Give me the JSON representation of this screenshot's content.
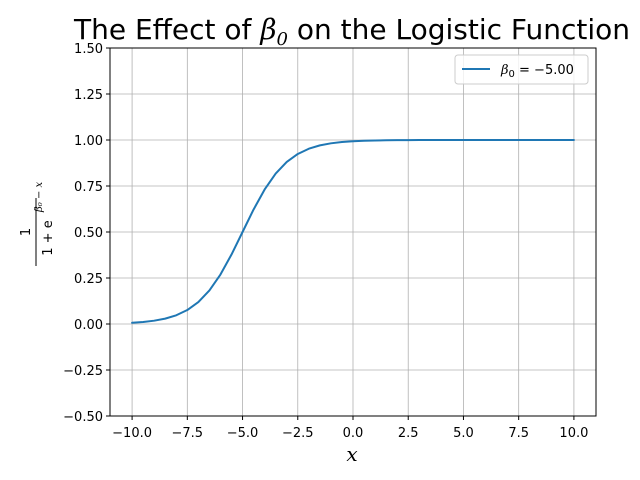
{
  "chart_data": {
    "type": "line",
    "title": {
      "prefix": "The Effect of ",
      "symbol": "β",
      "subscript": "0",
      "suffix": " on the Logistic Function"
    },
    "xlabel": "x",
    "ylabel": {
      "numerator": "1",
      "denominator": "1 + e",
      "exponent": "β₀ − x"
    },
    "xlim": [
      -11,
      11
    ],
    "ylim": [
      -0.5,
      1.5
    ],
    "xticks": [
      -10.0,
      -7.5,
      -5.0,
      -2.5,
      0.0,
      2.5,
      5.0,
      7.5,
      10.0
    ],
    "xtick_labels": [
      "−10.0",
      "−7.5",
      "−5.0",
      "−2.5",
      "0.0",
      "2.5",
      "5.0",
      "7.5",
      "10.0"
    ],
    "yticks": [
      -0.5,
      -0.25,
      0.0,
      0.25,
      0.5,
      0.75,
      1.0,
      1.25,
      1.5
    ],
    "ytick_labels": [
      "−0.50",
      "−0.25",
      "0.00",
      "0.25",
      "0.50",
      "0.75",
      "1.00",
      "1.25",
      "1.50"
    ],
    "grid": true,
    "legend_position": "top-right",
    "series": [
      {
        "name": "β₀ = −5.00",
        "legend": {
          "symbol": "β",
          "subscript": "0",
          "rest": " = −5.00"
        },
        "color": "#1f77b4",
        "x": [
          -10.0,
          -9.5,
          -9.0,
          -8.5,
          -8.0,
          -7.5,
          -7.0,
          -6.5,
          -6.0,
          -5.5,
          -5.0,
          -4.5,
          -4.0,
          -3.5,
          -3.0,
          -2.5,
          -2.0,
          -1.5,
          -1.0,
          -0.5,
          0.0,
          0.5,
          1.0,
          1.5,
          2.0,
          2.5,
          3.0,
          3.5,
          4.0,
          4.5,
          5.0,
          5.5,
          6.0,
          6.5,
          7.0,
          7.5,
          8.0,
          8.5,
          9.0,
          9.5,
          10.0
        ],
        "y": [
          0.0067,
          0.011,
          0.018,
          0.0293,
          0.0474,
          0.0759,
          0.1192,
          0.1824,
          0.2689,
          0.3775,
          0.5,
          0.6225,
          0.7311,
          0.8176,
          0.8808,
          0.9241,
          0.9526,
          0.9707,
          0.982,
          0.989,
          0.9933,
          0.9959,
          0.9975,
          0.9985,
          0.9991,
          0.9994,
          0.9997,
          0.9998,
          0.9999,
          0.9999,
          1.0,
          1.0,
          1.0,
          1.0,
          1.0,
          1.0,
          1.0,
          1.0,
          1.0,
          1.0,
          1.0
        ]
      }
    ]
  }
}
